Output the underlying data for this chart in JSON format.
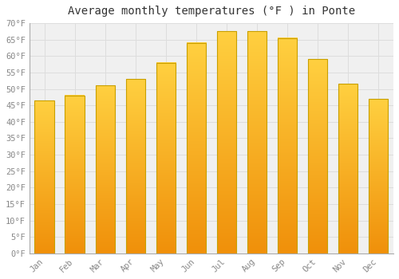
{
  "title": "Average monthly temperatures (°F ) in Ponte",
  "months": [
    "Jan",
    "Feb",
    "Mar",
    "Apr",
    "May",
    "Jun",
    "Jul",
    "Aug",
    "Sep",
    "Oct",
    "Nov",
    "Dec"
  ],
  "values": [
    46.5,
    48,
    51,
    53,
    58,
    64,
    67.5,
    67.5,
    65.5,
    59,
    51.5,
    47
  ],
  "bar_color_top": "#FFD040",
  "bar_color_bottom": "#F0900A",
  "bar_edge_color": "#C8A000",
  "ylim": [
    0,
    70
  ],
  "background_color": "#FFFFFF",
  "plot_bg_color": "#F0F0F0",
  "grid_color": "#DDDDDD",
  "title_fontsize": 10,
  "tick_fontsize": 7.5,
  "tick_color": "#888888",
  "font_family": "monospace"
}
